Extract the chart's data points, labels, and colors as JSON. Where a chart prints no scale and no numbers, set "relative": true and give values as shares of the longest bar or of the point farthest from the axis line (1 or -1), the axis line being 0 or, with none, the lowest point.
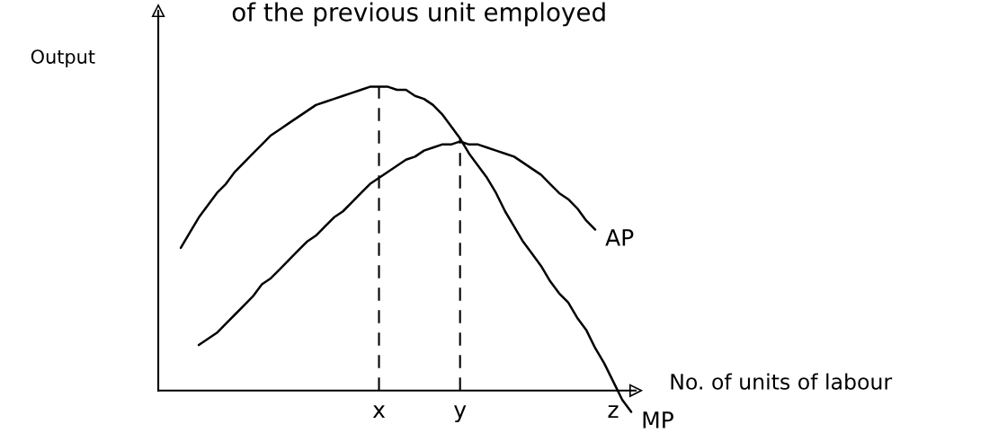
{
  "chart_data": {
    "type": "line",
    "title": "of the previous unit employed",
    "xlabel": "No. of units of labour",
    "ylabel": "Output",
    "relative": true,
    "tick_labels": "x",
    "categories": [
      null,
      null,
      null,
      null,
      null,
      null,
      null,
      null,
      null,
      null,
      null,
      null,
      null,
      null,
      null,
      null,
      null,
      null,
      null,
      null,
      null,
      null,
      null,
      null,
      "x",
      null,
      null,
      null,
      null,
      null,
      null,
      null,
      null,
      "y",
      null,
      null,
      null,
      null,
      null,
      null,
      null,
      null,
      null,
      null,
      null,
      null,
      null,
      null,
      null,
      null,
      "z",
      null,
      null
    ],
    "series": [
      {
        "name": "MP",
        "color": "#000000",
        "values": [
          null,
          null,
          0.47,
          0.52,
          0.57,
          0.61,
          0.65,
          0.68,
          0.72,
          0.75,
          0.78,
          0.81,
          0.84,
          0.86,
          0.88,
          0.9,
          0.92,
          0.94,
          0.95,
          0.96,
          0.97,
          0.98,
          0.99,
          1,
          1,
          1,
          0.99,
          0.99,
          0.97,
          0.96,
          0.94,
          0.91,
          0.87,
          0.83,
          0.78,
          0.74,
          0.7,
          0.65,
          0.59,
          0.54,
          0.49,
          0.45,
          0.41,
          0.36,
          0.32,
          0.29,
          0.24,
          0.2,
          0.14,
          0.09,
          0.03,
          -0.03,
          -0.07
        ]
      },
      {
        "name": "AP",
        "color": "#000000",
        "values": [
          null,
          null,
          null,
          null,
          0.15,
          0.17,
          0.19,
          0.22,
          0.25,
          0.28,
          0.31,
          0.35,
          0.37,
          0.4,
          0.43,
          0.46,
          0.49,
          0.51,
          0.54,
          0.57,
          0.59,
          0.62,
          0.65,
          0.68,
          0.7,
          0.72,
          0.74,
          0.76,
          0.77,
          0.79,
          0.8,
          0.81,
          0.81,
          0.82,
          0.81,
          0.81,
          0.8,
          0.79,
          0.78,
          0.77,
          0.75,
          0.73,
          0.71,
          0.68,
          0.65,
          0.63,
          0.6,
          0.56,
          0.53,
          null,
          null,
          null,
          null
        ]
      }
    ],
    "ref_lines": [
      {
        "axis": "x",
        "value": "x",
        "color": "#000000",
        "line_style": "dashed"
      },
      {
        "axis": "x",
        "value": "y",
        "color": "#000000",
        "line_style": "dashed"
      }
    ]
  }
}
